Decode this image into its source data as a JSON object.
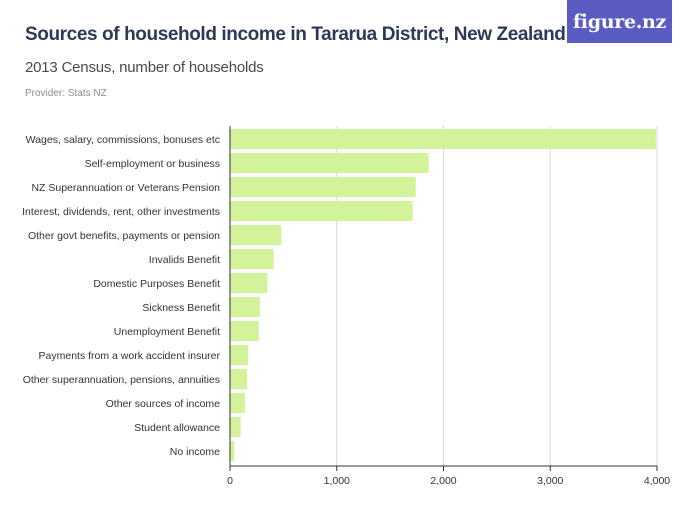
{
  "header": {
    "title": "Sources of household income in Tararua District, New Zealand",
    "subtitle": "2013 Census, number of households",
    "provider": "Provider: Stats NZ",
    "logo_text": "figure.nz"
  },
  "colors": {
    "bar": "#d3f39a",
    "grid": "#d8d8d8",
    "axis": "#333333",
    "logo_bg": "#5a5cc4"
  },
  "chart_data": {
    "type": "bar",
    "orientation": "horizontal",
    "categories": [
      "Wages, salary, commissions, bonuses etc",
      "Self-employment or business",
      "NZ Superannuation or Veterans Pension",
      "Interest, dividends, rent, other investments",
      "Other govt benefits, payments or pension",
      "Invalids Benefit",
      "Domestic Purposes Benefit",
      "Sickness Benefit",
      "Unemployment Benefit",
      "Payments from a work accident insurer",
      "Other superannuation, pensions, annuities",
      "Other sources of income",
      "Student allowance",
      "No income"
    ],
    "values": [
      3990,
      1860,
      1740,
      1710,
      480,
      410,
      350,
      280,
      270,
      170,
      160,
      140,
      100,
      40
    ],
    "xlim": [
      0,
      4000
    ],
    "xticks": [
      0,
      1000,
      2000,
      3000,
      4000
    ],
    "xtick_labels": [
      "0",
      "1,000",
      "2,000",
      "3,000",
      "4,000"
    ],
    "grid": true
  }
}
